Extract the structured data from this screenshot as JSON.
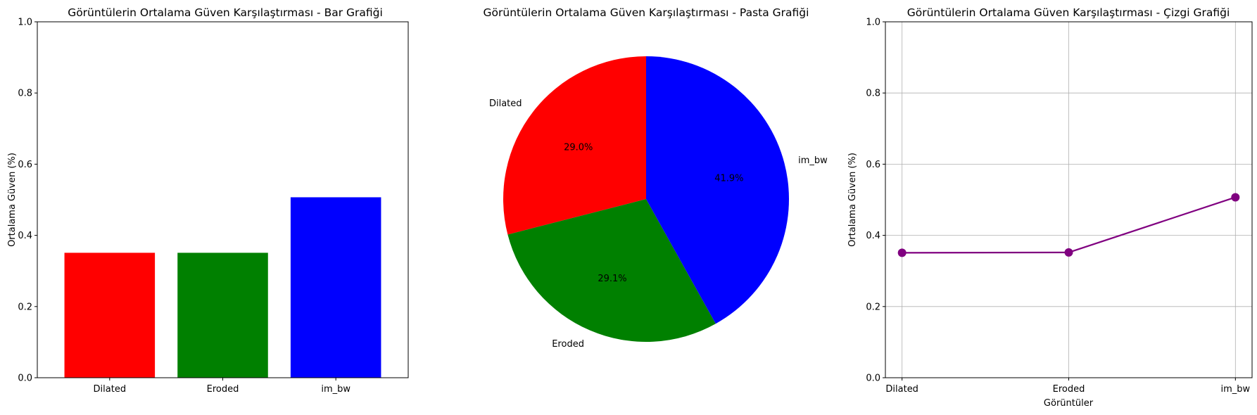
{
  "chart_data": [
    {
      "type": "bar",
      "title": "Görüntülerin Ortalama Güven Karşılaştırması - Bar Grafiği",
      "xlabel": "",
      "ylabel": "Ortalama Güven (%)",
      "categories": [
        "Dilated",
        "Eroded",
        "im_bw"
      ],
      "values": [
        0.351,
        0.351,
        0.507
      ],
      "colors": [
        "#ff0000",
        "#008000",
        "#0000ff"
      ],
      "ylim": [
        0,
        1.0
      ],
      "yticks": [
        "0.0",
        "0.2",
        "0.4",
        "0.6",
        "0.8",
        "1.0"
      ],
      "grid": false
    },
    {
      "type": "pie",
      "title": "Görüntülerin Ortalama Güven Karşılaştırması - Pasta Grafiği",
      "labels": [
        "Dilated",
        "Eroded",
        "im_bw"
      ],
      "values": [
        29.0,
        29.1,
        41.9
      ],
      "percent_labels": [
        "29.0%",
        "29.1%",
        "41.9%"
      ],
      "colors": [
        "#ff0000",
        "#008000",
        "#0000ff"
      ]
    },
    {
      "type": "line",
      "title": "Görüntülerin Ortalama Güven Karşılaştırması - Çizgi Grafiği",
      "xlabel": "Görüntüler",
      "ylabel": "Ortalama Güven (%)",
      "categories": [
        "Dilated",
        "Eroded",
        "im_bw"
      ],
      "values": [
        0.351,
        0.352,
        0.507
      ],
      "color": "#800080",
      "ylim": [
        0,
        1.0
      ],
      "yticks": [
        "0.0",
        "0.2",
        "0.4",
        "0.6",
        "0.8",
        "1.0"
      ],
      "grid": true
    }
  ]
}
